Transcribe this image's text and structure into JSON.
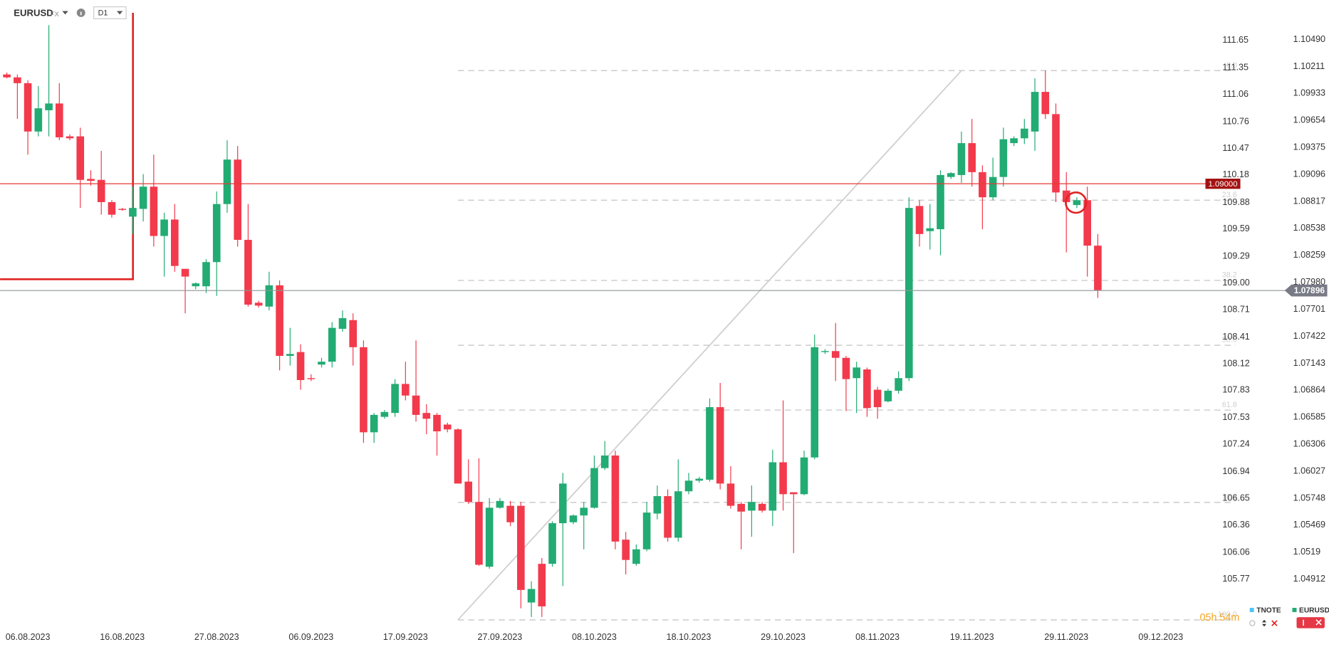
{
  "header": {
    "symbol": "EURUSD",
    "market": "FX",
    "timeframe": "D1",
    "countdown": "05h 54m"
  },
  "chart_data": {
    "type": "candlestick",
    "up_color": "#22ab73",
    "down_color": "#f23a4c",
    "open": [
      1.1013,
      1.101,
      1.1004,
      1.0954,
      1.0976,
      1.0983,
      1.0949,
      1.0949,
      1.0905,
      1.0904,
      1.0881,
      1.0874,
      1.0866,
      1.0874,
      1.0897,
      1.0846,
      1.0863,
      1.0812,
      1.0794,
      1.0794,
      1.0819,
      1.0879,
      1.0925,
      1.0842,
      1.0777,
      1.0773,
      1.0795,
      1.0722,
      1.0726,
      1.0699,
      1.0713,
      1.0716,
      1.075,
      1.0759,
      1.0731,
      1.0643,
      1.0659,
      1.0663,
      1.0693,
      1.0681,
      1.0663,
      1.0661,
      1.0651,
      1.0646,
      1.0592,
      1.0571,
      1.0504,
      1.0565,
      1.0567,
      1.0567,
      1.0467,
      1.0507,
      1.0507,
      1.0549,
      1.055,
      1.0557,
      1.0565,
      1.0606,
      1.0619,
      1.0532,
      1.0507,
      1.0522,
      1.0559,
      1.0577,
      1.0534,
      1.0582,
      1.0593,
      1.0594,
      1.0669,
      1.059,
      1.0569,
      1.0562,
      1.0569,
      1.0562,
      1.0612,
      1.0581,
      1.0579,
      1.0617,
      1.0726,
      1.0727,
      1.072,
      1.0699,
      1.0708,
      1.0687,
      1.0675,
      1.0686,
      1.0699,
      1.0877,
      1.0851,
      1.0853,
      1.0907,
      1.0909,
      1.0942,
      1.0912,
      1.0886,
      1.0907,
      1.0942,
      1.0947,
      1.0954,
      1.0995,
      1.0972,
      1.0893,
      1.0878,
      1.0883,
      1.0836
    ],
    "high": [
      1.1015,
      1.1013,
      1.1007,
      1.1001,
      1.1064,
      1.1004,
      1.0951,
      1.0958,
      1.0914,
      1.0934,
      1.0883,
      1.0875,
      1.0897,
      1.091,
      1.093,
      1.087,
      1.0879,
      1.0812,
      1.0798,
      1.0822,
      1.0892,
      1.0945,
      1.0939,
      1.0879,
      1.0779,
      1.0809,
      1.08,
      1.0751,
      1.0734,
      1.0703,
      1.072,
      1.0757,
      1.0769,
      1.0766,
      1.0738,
      1.0663,
      1.0666,
      1.0698,
      1.0716,
      1.0738,
      1.0672,
      1.0663,
      1.0653,
      1.0647,
      1.0615,
      1.0616,
      1.0575,
      1.0575,
      1.0572,
      1.0571,
      1.0489,
      1.0513,
      1.0551,
      1.0601,
      1.0558,
      1.0571,
      1.0619,
      1.0634,
      1.0624,
      1.054,
      1.0527,
      1.0571,
      1.0588,
      1.0584,
      1.0615,
      1.0601,
      1.0597,
      1.0678,
      1.0694,
      1.0608,
      1.0571,
      1.0588,
      1.0571,
      1.0625,
      1.0676,
      1.0581,
      1.0624,
      1.0744,
      1.0729,
      1.0756,
      1.0722,
      1.0716,
      1.071,
      1.069,
      1.0688,
      1.0706,
      1.0886,
      1.0883,
      1.0879,
      1.0914,
      1.0912,
      1.0954,
      1.0967,
      1.0919,
      1.0927,
      1.0958,
      1.0949,
      1.0967,
      1.1009,
      1.1017,
      1.0983,
      1.0912,
      1.0886,
      1.0897,
      1.0848
    ],
    "low": [
      1.1009,
      1.0967,
      1.093,
      1.0949,
      1.0949,
      1.0945,
      1.0945,
      1.0875,
      1.0898,
      1.0868,
      1.0865,
      1.0872,
      1.0848,
      1.0861,
      1.0835,
      1.0804,
      1.0809,
      1.0766,
      1.0791,
      1.0787,
      1.0784,
      1.087,
      1.0835,
      1.0773,
      1.0772,
      1.0769,
      1.0707,
      1.0712,
      1.0687,
      1.0696,
      1.071,
      1.071,
      1.0747,
      1.0712,
      1.0632,
      1.0632,
      1.0657,
      1.0659,
      1.0676,
      1.0654,
      1.0641,
      1.0619,
      1.0643,
      1.059,
      1.0569,
      1.0505,
      1.0502,
      1.0564,
      1.0546,
      1.0461,
      1.0452,
      1.0452,
      1.0504,
      1.0484,
      1.0548,
      1.0522,
      1.0564,
      1.0604,
      1.0522,
      1.0496,
      1.0505,
      1.052,
      1.0553,
      1.053,
      1.053,
      1.0579,
      1.0591,
      1.0592,
      1.0584,
      1.0564,
      1.0522,
      1.0535,
      1.056,
      1.0546,
      1.0562,
      1.0518,
      1.0578,
      1.0615,
      1.0724,
      1.0696,
      1.0665,
      1.0663,
      1.0659,
      1.0657,
      1.0674,
      1.0683,
      1.0696,
      1.0835,
      1.0832,
      1.0826,
      1.0905,
      1.0901,
      1.0897,
      1.0853,
      1.0883,
      1.0897,
      1.0939,
      1.0941,
      1.0934,
      1.0967,
      1.0881,
      1.0829,
      1.0875,
      1.0804,
      1.0782
    ],
    "close": [
      1.101,
      1.1004,
      1.0954,
      1.0978,
      1.0983,
      1.0948,
      1.0947,
      1.0904,
      1.0903,
      1.0881,
      1.0868,
      1.0873,
      1.0875,
      1.0897,
      1.0846,
      1.0863,
      1.0815,
      1.0804,
      1.0797,
      1.0819,
      1.0879,
      1.0925,
      1.0842,
      1.0775,
      1.0774,
      1.0795,
      1.0722,
      1.0724,
      1.0697,
      1.0698,
      1.0716,
      1.0751,
      1.0761,
      1.0731,
      1.0643,
      1.0661,
      1.0664,
      1.0693,
      1.0681,
      1.0661,
      1.0657,
      1.0644,
      1.0646,
      1.059,
      1.0571,
      1.0506,
      1.0565,
      1.0572,
      1.055,
      1.048,
      1.0481,
      1.0463,
      1.0549,
      1.059,
      1.0557,
      1.0565,
      1.0606,
      1.0619,
      1.053,
      1.0511,
      1.0522,
      1.056,
      1.0577,
      1.0534,
      1.0582,
      1.0593,
      1.0595,
      1.0669,
      1.059,
      1.0567,
      1.0561,
      1.0571,
      1.0562,
      1.0612,
      1.0579,
      1.0579,
      1.0617,
      1.0731,
      1.0727,
      1.072,
      1.0698,
      1.071,
      1.0668,
      1.0669,
      1.0686,
      1.0699,
      1.0875,
      1.0848,
      1.0854,
      1.0909,
      1.0911,
      1.0942,
      1.0912,
      1.0886,
      1.0907,
      1.0946,
      1.0947,
      1.0957,
      1.0995,
      1.0972,
      1.0891,
      1.0881,
      1.0883,
      1.0836,
      1.079
    ],
    "xlim": [
      -0.65,
      117.1
    ],
    "xticks": [
      {
        "value": 2,
        "label": "06.08.2023"
      },
      {
        "value": 11,
        "label": "16.08.2023"
      },
      {
        "value": 20,
        "label": "27.08.2023"
      },
      {
        "value": 29,
        "label": "06.09.2023"
      },
      {
        "value": 38,
        "label": "17.09.2023"
      },
      {
        "value": 47,
        "label": "27.09.2023"
      },
      {
        "value": 56,
        "label": "08.10.2023"
      },
      {
        "value": 65,
        "label": "18.10.2023"
      },
      {
        "value": 74,
        "label": "29.10.2023"
      },
      {
        "value": 83,
        "label": "08.11.2023"
      },
      {
        "value": 92,
        "label": "19.11.2023"
      },
      {
        "value": 101,
        "label": "29.11.2023"
      },
      {
        "value": 110,
        "label": "09.12.2023"
      }
    ],
    "ylim": [
      1.0443,
      1.109
    ],
    "yticks": [
      {
        "value": 1.1049,
        "label": "1.10490"
      },
      1.10211,
      1.09933,
      1.09654,
      1.09375,
      1.09096,
      1.08817,
      1.08538,
      1.08259,
      {
        "value": 1.0798,
        "label": "1.07980"
      },
      1.07701,
      1.07422,
      1.07143,
      1.06864,
      1.06585,
      1.06306,
      1.06027,
      1.05748,
      1.05469,
      1.0519,
      1.04912
    ],
    "y2lim": [
      105.26,
      112.09
    ],
    "y2ticks": [
      111.65,
      111.35,
      111.06,
      110.76,
      110.47,
      110.18,
      109.88,
      109.59,
      109.29,
      {
        "value": 109,
        "label": "109.00"
      },
      108.71,
      108.41,
      108.12,
      107.83,
      107.53,
      107.24,
      106.94,
      106.65,
      106.36,
      106.06,
      105.77
    ],
    "fib": {
      "from_index": 43,
      "to_index": 91,
      "low": 1.0449,
      "high": 1.1017,
      "color": "#cfcfcf",
      "levels": [
        0,
        23.6,
        38.2,
        50,
        61.8,
        78.6,
        100
      ],
      "value_labels": [
        "0.0",
        "23.6",
        "38.2",
        "50.0",
        "61.8",
        "78.6",
        "100.0"
      ]
    },
    "price_line": {
      "value": 1.09,
      "label": "1.09000",
      "color": "#e53935",
      "label_color": "#a31212"
    },
    "last_price": {
      "value": 1.07896,
      "label": "1.07896",
      "color": "#8f9496",
      "label_color": "#787b86"
    },
    "legend": [
      {
        "name": "TNOTE",
        "color": "#4fc3f7"
      },
      {
        "name": "EURUSD",
        "color": "#22ab73"
      }
    ]
  }
}
